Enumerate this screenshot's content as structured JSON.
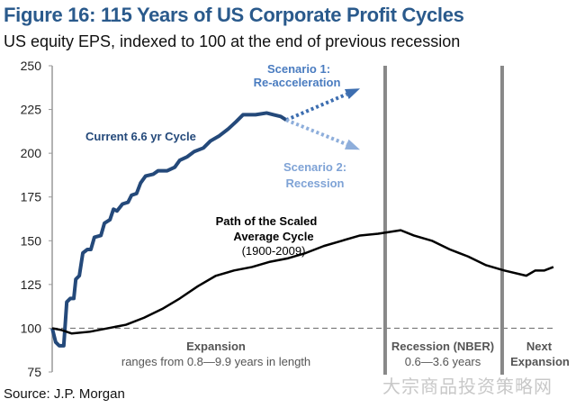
{
  "title": "Figure 16: 115 Years of US Corporate Profit Cycles",
  "subtitle": "US equity EPS, indexed to 100 at the end of previous recession",
  "source": "Source: J.P. Morgan",
  "watermark": "大宗商品投资策略网",
  "chart_data": {
    "type": "line",
    "title": "Figure 16: 115 Years of US Corporate Profit Cycles",
    "ylabel": "US equity EPS, indexed to 100",
    "xlabel": "",
    "x_units": "relative position across cycle (0-100)",
    "xlim": [
      0,
      100
    ],
    "ylim": [
      75,
      250
    ],
    "yticks": [
      75,
      100,
      125,
      150,
      175,
      200,
      225,
      250
    ],
    "reference_line": 100,
    "recession_bounds": [
      66.3,
      89.6
    ],
    "series": [
      {
        "name": "Current 6.6 yr Cycle",
        "color": "#24497a",
        "x": [
          0,
          0.7,
          1.4,
          2.3,
          2.9,
          3.6,
          4.3,
          4.7,
          5.4,
          6.1,
          7.0,
          7.7,
          8.4,
          9.7,
          10.4,
          11.5,
          12.2,
          12.9,
          14.0,
          15.1,
          15.8,
          16.8,
          17.6,
          18.6,
          20.1,
          21.1,
          22.9,
          24.4,
          25.4,
          26.9,
          28.3,
          30.1,
          31.5,
          33.3,
          35.1,
          36.6,
          38.0,
          40.5,
          42.7,
          44.1,
          45.5,
          46.6
        ],
        "y": [
          100,
          92,
          90,
          90,
          115,
          117,
          117,
          128,
          130,
          143,
          145,
          145,
          152,
          153,
          160,
          162,
          168,
          167,
          171,
          172,
          176,
          177,
          183,
          187,
          188,
          190,
          190,
          192,
          196,
          198,
          201,
          203,
          207,
          210,
          214,
          218,
          222,
          222,
          223,
          222,
          221,
          219
        ]
      },
      {
        "name": "Path of the Scaled Average Cycle (1900-2009)",
        "color": "#000000",
        "x": [
          0,
          1.8,
          3.9,
          7.5,
          11.1,
          14.7,
          18.3,
          21.9,
          25.4,
          29.0,
          32.6,
          36.2,
          39.8,
          43.4,
          47.0,
          50.5,
          54.1,
          57.7,
          61.3,
          64.9,
          69.4,
          72.0,
          75.6,
          79.2,
          82.8,
          86.4,
          90.0,
          94.4,
          96.2,
          98.0,
          99.8
        ],
        "y": [
          100,
          99,
          97,
          98,
          100,
          102,
          106,
          111,
          117,
          124,
          130,
          133,
          135,
          138,
          140,
          143,
          147,
          150,
          153,
          154,
          156,
          153,
          150,
          145,
          141,
          136,
          133,
          130,
          133,
          133,
          135
        ]
      },
      {
        "name": "Scenario 1: Re-acceleration",
        "color": "#3d6eb0",
        "style": "dotted-arrow",
        "x": [
          46.6,
          61.3
        ],
        "y": [
          219,
          237
        ]
      },
      {
        "name": "Scenario 2: Recession",
        "color": "#8eaedb",
        "style": "dotted-arrow",
        "x": [
          46.6,
          61.3
        ],
        "y": [
          219,
          202
        ]
      }
    ],
    "annotations": {
      "current": "Current 6.6 yr Cycle",
      "scenario1": [
        "Scenario 1:",
        "Re-acceleration"
      ],
      "scenario2": [
        "Scenario 2:",
        "Recession"
      ],
      "average": [
        "Path of the Scaled",
        "Average Cycle",
        "(1900-2009)"
      ],
      "expansion": [
        "Expansion",
        "ranges from 0.8—9.9 years in length"
      ],
      "recession": [
        "Recession (NBER)",
        "0.6—3.6 years"
      ],
      "next": [
        "Next",
        "Expansion"
      ]
    }
  }
}
